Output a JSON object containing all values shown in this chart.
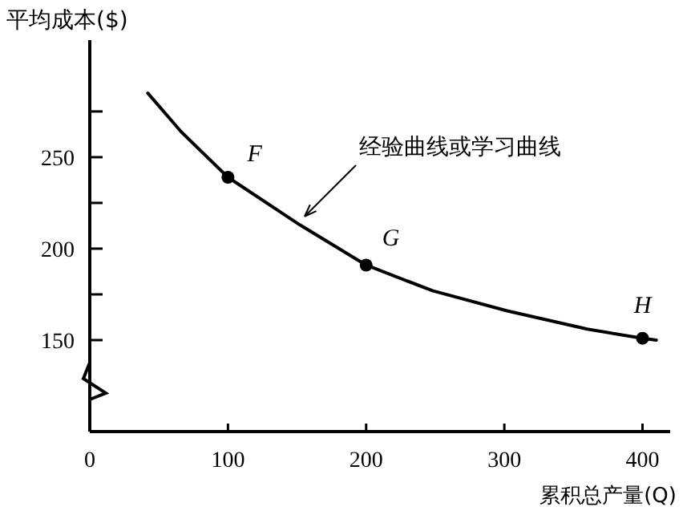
{
  "chart_data": {
    "type": "line",
    "ylabel": "平均成本($)",
    "xlabel": "累积总产量(Q)",
    "xlim": [
      0,
      420
    ],
    "xticks": [
      0,
      100,
      200,
      300,
      400
    ],
    "ylim": [
      100,
      314
    ],
    "yticks": [
      150,
      {
        "value": 175,
        "label": null
      },
      200,
      {
        "value": 225,
        "label": null
      },
      250,
      {
        "value": 275,
        "label": null
      }
    ],
    "series": [
      {
        "marker": "none",
        "color": "#000000",
        "x": [
          42,
          66,
          100,
          152,
          200,
          248,
          302,
          360,
          400,
          410
        ],
        "values": [
          285,
          264,
          239,
          213,
          191,
          177,
          166,
          156,
          151,
          150
        ]
      },
      {
        "type": "scatter",
        "marker": "circle",
        "color": "#000000",
        "x": [
          100,
          200,
          400
        ],
        "values": [
          239,
          191,
          151
        ]
      }
    ],
    "annotations": [
      {
        "text": "F",
        "x": 100,
        "y": 239
      },
      {
        "text": "G",
        "x": 200,
        "y": 191
      },
      {
        "text": "H",
        "x": 400,
        "y": 151
      },
      {
        "text": "经验曲线或学习曲线",
        "x": 152,
        "y": 215
      }
    ]
  }
}
